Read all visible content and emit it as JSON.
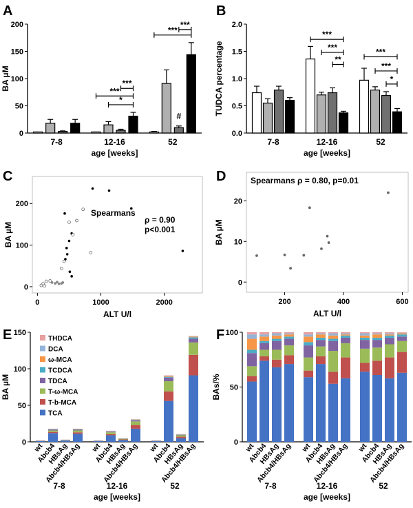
{
  "chart_data": [
    {
      "panel": "A",
      "type": "bar",
      "groups": [
        "7-8",
        "12-16",
        "52"
      ],
      "series": [
        {
          "name": "wt",
          "color": "#ffffff",
          "values": [
            2,
            2,
            2
          ],
          "errors": [
            0,
            0,
            1
          ]
        },
        {
          "name": "Abcb4",
          "color": "#b0b0b0",
          "values": [
            18,
            15,
            91
          ],
          "errors": [
            7,
            6,
            25
          ]
        },
        {
          "name": "HBsAg",
          "color": "#707070",
          "values": [
            3,
            5,
            10
          ],
          "errors": [
            1,
            2,
            3
          ]
        },
        {
          "name": "Abcb4/HBsAg",
          "color": "#000000",
          "values": [
            18,
            31,
            144
          ],
          "errors": [
            7,
            7,
            22
          ]
        }
      ],
      "xlabel": "age [weeks]",
      "ylabel": "BA µM",
      "ylim": [
        0,
        200
      ],
      "yticks": [
        "0",
        "50",
        "100",
        "150",
        "200"
      ],
      "annotations": [
        {
          "text": "***",
          "g1": 1,
          "s1": 0,
          "g2": 1,
          "s2": 3,
          "level": 68
        },
        {
          "text": "*",
          "g1": 1,
          "s1": 1,
          "g2": 1,
          "s2": 3,
          "level": 52
        },
        {
          "text": "***",
          "g1": 1,
          "s1": 2,
          "g2": 1,
          "s2": 3,
          "level": 82
        },
        {
          "text": "***",
          "g1": 2,
          "s1": 0,
          "g2": 2,
          "s2": 3,
          "level": 180
        },
        {
          "text": "***",
          "g1": 2,
          "s1": 2,
          "g2": 2,
          "s2": 3,
          "level": 190
        },
        {
          "text": "#",
          "g1": 2,
          "s1": 2,
          "g2": 2,
          "s2": 2,
          "level": 22,
          "plain": true
        }
      ]
    },
    {
      "panel": "B",
      "type": "bar",
      "groups": [
        "7-8",
        "12-16",
        "52"
      ],
      "series": [
        {
          "name": "wt",
          "color": "#ffffff",
          "values": [
            0.74,
            1.36,
            0.97
          ],
          "errors": [
            0.12,
            0.23,
            0.22
          ]
        },
        {
          "name": "Abcb4",
          "color": "#b0b0b0",
          "values": [
            0.55,
            0.7,
            0.79
          ],
          "errors": [
            0.08,
            0.05,
            0.06
          ]
        },
        {
          "name": "HBsAg",
          "color": "#707070",
          "values": [
            0.79,
            0.74,
            0.69
          ],
          "errors": [
            0.07,
            0.09,
            0.07
          ]
        },
        {
          "name": "Abcb4/HBsAg",
          "color": "#000000",
          "values": [
            0.6,
            0.37,
            0.39
          ],
          "errors": [
            0.05,
            0.03,
            0.06
          ]
        }
      ],
      "xlabel": "age [weeks]",
      "ylabel": "TUDCA percentage",
      "ylim": [
        0,
        2
      ],
      "yticks": [
        "0.0",
        "0.5",
        "1.0",
        "1.5",
        "2.0"
      ],
      "annotations": [
        {
          "text": "***",
          "g1": 1,
          "s1": 0,
          "g2": 1,
          "s2": 3,
          "level": 1.72
        },
        {
          "text": "***",
          "g1": 1,
          "s1": 1,
          "g2": 1,
          "s2": 3,
          "level": 1.48
        },
        {
          "text": "**",
          "g1": 1,
          "s1": 2,
          "g2": 1,
          "s2": 3,
          "level": 1.26
        },
        {
          "text": "***",
          "g1": 2,
          "s1": 0,
          "g2": 2,
          "s2": 3,
          "level": 1.4
        },
        {
          "text": "***",
          "g1": 2,
          "s1": 1,
          "g2": 2,
          "s2": 3,
          "level": 1.14
        },
        {
          "text": "*",
          "g1": 2,
          "s1": 2,
          "g2": 2,
          "s2": 3,
          "level": 0.9
        }
      ]
    },
    {
      "panel": "C",
      "type": "scatter",
      "xlabel": "ALT U/l",
      "ylabel": "BA µM",
      "xlim": [
        -80,
        2600
      ],
      "ylim": [
        -15,
        265
      ],
      "xticks": [
        0,
        1000,
        2000
      ],
      "yticks": [
        0,
        100,
        200
      ],
      "text_label": "Spearmans",
      "rho": "ρ = 0.90",
      "p": "p<0.001",
      "points_filled": [
        [
          870,
          236
        ],
        [
          1130,
          231
        ],
        [
          1480,
          188
        ],
        [
          2290,
          86
        ],
        [
          430,
          176
        ],
        [
          540,
          128
        ],
        [
          500,
          110
        ],
        [
          460,
          93
        ],
        [
          470,
          78
        ],
        [
          440,
          66
        ],
        [
          510,
          36
        ],
        [
          540,
          25
        ]
      ],
      "points_open": [
        [
          720,
          186
        ],
        [
          620,
          159
        ],
        [
          500,
          155
        ],
        [
          560,
          125
        ],
        [
          840,
          82
        ],
        [
          420,
          61
        ],
        [
          380,
          44
        ],
        [
          90,
          7
        ],
        [
          140,
          13
        ],
        [
          200,
          14
        ],
        [
          60,
          3
        ],
        [
          110,
          2
        ]
      ],
      "points_grey": [
        [
          230,
          10
        ],
        [
          280,
          8
        ],
        [
          310,
          11
        ],
        [
          340,
          7
        ],
        [
          380,
          8
        ],
        [
          400,
          10
        ]
      ]
    },
    {
      "panel": "D",
      "type": "scatter",
      "xlabel": "ALT U/l",
      "ylabel": "BA µM",
      "xlim": [
        70,
        620
      ],
      "ylim": [
        -2.5,
        27
      ],
      "xticks": [
        200,
        400,
        600
      ],
      "yticks": [
        0,
        10,
        20
      ],
      "annotation": "Spearmans ρ = 0.80, p=0.01",
      "points": [
        [
          105,
          6.5
        ],
        [
          200,
          6.7
        ],
        [
          220,
          3.4
        ],
        [
          265,
          6.6
        ],
        [
          285,
          18.3
        ],
        [
          325,
          8.2
        ],
        [
          345,
          11.3
        ],
        [
          350,
          9.7
        ],
        [
          552,
          22
        ]
      ]
    },
    {
      "panel": "E",
      "type": "stacked-bar",
      "ylabel": "BA µM",
      "xlabel": "age [weeks]",
      "ylim": [
        0,
        150
      ],
      "yticks": [
        "0",
        "50",
        "100",
        "150"
      ],
      "groups": [
        {
          "label": "7-8",
          "categories": [
            "wt",
            "Abcb4",
            "HBsAg",
            "Abcb4/HBsAg"
          ]
        },
        {
          "label": "12-16",
          "categories": [
            "wt",
            "Abcb4",
            "HBsAg",
            "Abcb4/HBsAg"
          ]
        },
        {
          "label": "52",
          "categories": [
            "wt",
            "Abcb4",
            "HBsAg",
            "Abcb4/HBsAg"
          ]
        }
      ],
      "components": [
        {
          "name": "TCA",
          "color": "#4472c4"
        },
        {
          "name": "T-b-MCA",
          "color": "#c0504d"
        },
        {
          "name": "T-ω-MCA",
          "color": "#9bbb59"
        },
        {
          "name": "TDCA",
          "color": "#8064a2"
        },
        {
          "name": "TCDCA",
          "color": "#4bacc6"
        },
        {
          "name": "ω-MCA",
          "color": "#f79646"
        },
        {
          "name": "DCA",
          "color": "#95b3d7"
        },
        {
          "name": "THDCA",
          "color": "#e6a0a0"
        }
      ],
      "stacks": [
        [
          1.2,
          0.2,
          0.2,
          0.1,
          0.1,
          0.1,
          0.1,
          0.1
        ],
        [
          12,
          1.5,
          2,
          1,
          0.5,
          0.4,
          0.3,
          0.3
        ],
        [
          1.8,
          0.3,
          0.4,
          0.2,
          0.1,
          0.1,
          0.1,
          0.1
        ],
        [
          11,
          2,
          2.5,
          1,
          0.5,
          0.5,
          0.3,
          0.2
        ],
        [
          1.2,
          0.2,
          0.2,
          0.1,
          0.1,
          0.1,
          0.1,
          0.1
        ],
        [
          9,
          1.5,
          2.5,
          1,
          0.4,
          0.4,
          0.2,
          0.2
        ],
        [
          2.5,
          0.8,
          0.8,
          0.3,
          0.2,
          0.2,
          0.1,
          0.1
        ],
        [
          18,
          5,
          5,
          1.5,
          0.5,
          0.5,
          0.3,
          0.2
        ],
        [
          1.2,
          0.2,
          0.2,
          0.1,
          0.1,
          0.1,
          0.1,
          0.1
        ],
        [
          56,
          13,
          14,
          5,
          1,
          1,
          0.5,
          0.5
        ],
        [
          5,
          2,
          2,
          0.7,
          0.3,
          0.3,
          0.2,
          0.2
        ],
        [
          91,
          28,
          17,
          5,
          2,
          1,
          0.5,
          0.5
        ]
      ]
    },
    {
      "panel": "F",
      "type": "stacked-bar-percent",
      "ylabel": "BAs/%",
      "xlabel": "age [weeks]",
      "ylim": [
        0,
        100
      ],
      "yticks": [
        "0",
        "50",
        "100"
      ],
      "groups": [
        {
          "label": "7-8",
          "categories": [
            "wt",
            "Abcb4",
            "HBsAg",
            "Abcb4/HBsAg"
          ]
        },
        {
          "label": "12-16",
          "categories": [
            "wt",
            "Abcb4",
            "HBsAg",
            "Abcb4/HBsAg"
          ]
        },
        {
          "label": "52",
          "categories": [
            "wt",
            "Abcb4",
            "HBsAg",
            "Abcb4/HBsAg"
          ]
        }
      ],
      "components": [
        "TCA",
        "T-b-MCA",
        "T-ω-MCA",
        "TDCA",
        "TCDCA",
        "ω-MCA",
        "DCA",
        "THDCA"
      ],
      "stacks": [
        [
          55,
          5,
          9,
          12,
          3,
          10,
          4,
          2
        ],
        [
          74,
          4,
          6,
          6,
          2,
          4,
          2,
          2
        ],
        [
          68,
          7,
          9,
          8,
          2,
          3,
          2,
          1
        ],
        [
          71,
          8,
          9,
          6,
          2,
          2,
          1,
          1
        ],
        [
          59,
          6,
          12,
          11,
          3,
          5,
          2,
          2
        ],
        [
          71,
          7,
          9,
          6,
          2,
          3,
          1,
          1
        ],
        [
          53,
          11,
          19,
          9,
          2,
          3,
          2,
          1
        ],
        [
          58,
          19,
          13,
          5,
          2,
          1,
          1,
          1
        ],
        [
          64,
          8,
          13,
          8,
          2,
          2,
          2,
          1
        ],
        [
          61,
          13,
          12,
          7,
          2,
          3,
          1,
          1
        ],
        [
          58,
          19,
          12,
          6,
          2,
          1,
          1,
          1
        ],
        [
          63,
          19,
          10,
          4,
          2,
          1,
          0.5,
          0.5
        ]
      ]
    }
  ],
  "panel_labels": [
    "A",
    "B",
    "C",
    "D",
    "E",
    "F"
  ]
}
